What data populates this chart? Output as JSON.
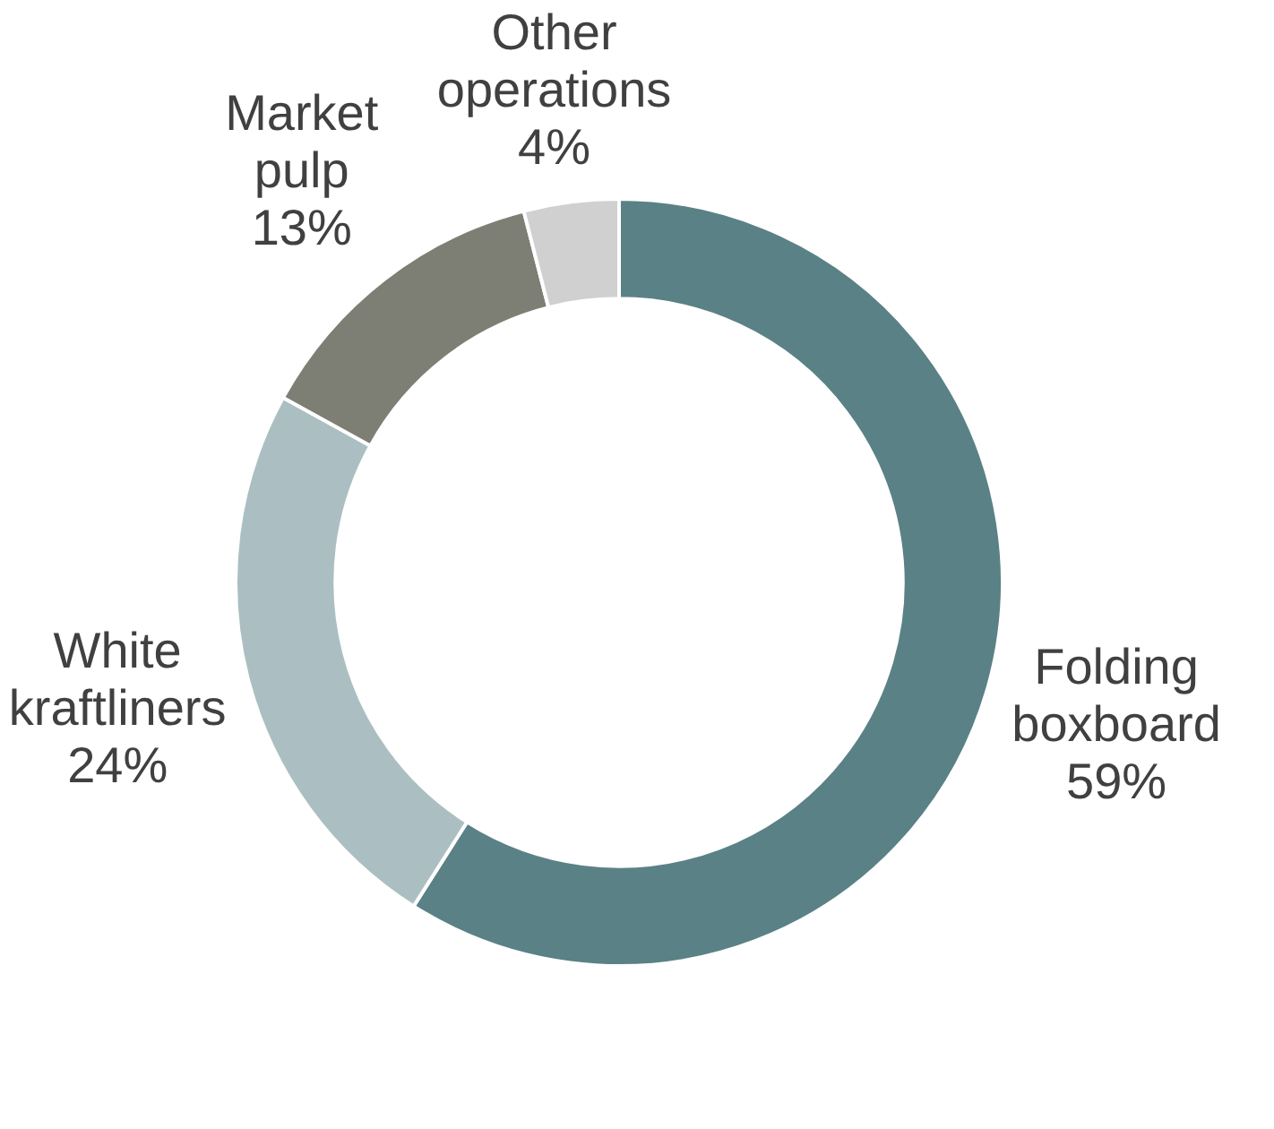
{
  "chart_data": {
    "type": "donut",
    "categories": [
      "Folding boxboard",
      "White kraftliners",
      "Market pulp",
      "Other operations"
    ],
    "values": [
      59,
      24,
      13,
      4
    ],
    "colors": [
      "#5a8186",
      "#abbfc2",
      "#7d7f74",
      "#d0d0d0"
    ],
    "value_labels": [
      "59%",
      "24%",
      "13%",
      "4%"
    ],
    "legend": false
  }
}
